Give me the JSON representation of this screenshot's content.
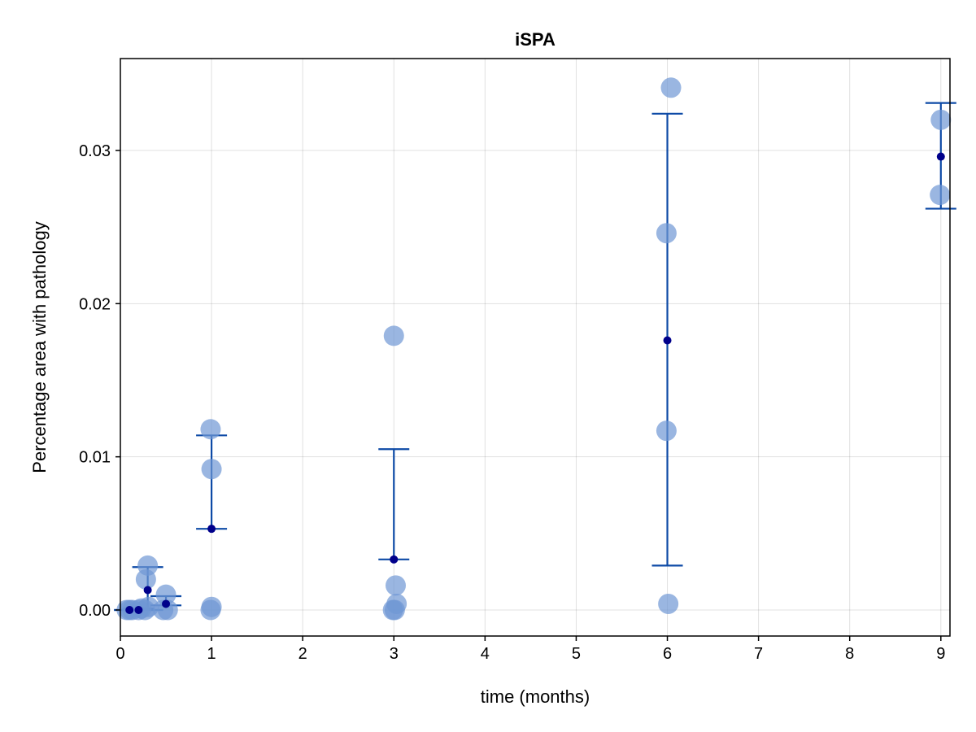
{
  "chart_data": {
    "type": "scatter",
    "title": "iSPA",
    "xlabel": "time (months)",
    "ylabel": "Percentage area with pathology",
    "xlim": [
      0,
      9.1
    ],
    "ylim": [
      -0.0017,
      0.036
    ],
    "xticks": [
      0,
      1,
      2,
      3,
      4,
      5,
      6,
      7,
      8,
      9
    ],
    "xtick_labels": [
      "0",
      "1",
      "2",
      "3",
      "4",
      "5",
      "6",
      "7",
      "8",
      "9"
    ],
    "yticks": [
      0.0,
      0.01,
      0.02,
      0.03
    ],
    "ytick_labels": [
      "0.00",
      "0.01",
      "0.02",
      "0.03"
    ],
    "grid": true,
    "colors": {
      "points": "#6f97d4",
      "errorbar": "#0d4aa6",
      "mean": "#00008b"
    },
    "points": [
      {
        "x": 0.07,
        "y": 0.0
      },
      {
        "x": 0.1,
        "y": 0.0
      },
      {
        "x": 0.13,
        "y": 0.0
      },
      {
        "x": 0.2,
        "y": 0.0
      },
      {
        "x": 0.23,
        "y": 0.0001
      },
      {
        "x": 0.27,
        "y": 0.0
      },
      {
        "x": 0.3,
        "y": 0.0029
      },
      {
        "x": 0.28,
        "y": 0.002
      },
      {
        "x": 0.31,
        "y": 0.0002
      },
      {
        "x": 0.47,
        "y": 0.0
      },
      {
        "x": 0.5,
        "y": 0.001
      },
      {
        "x": 0.52,
        "y": 0.0
      },
      {
        "x": 0.99,
        "y": 0.0118
      },
      {
        "x": 1.0,
        "y": 0.0092
      },
      {
        "x": 1.0,
        "y": 0.0002
      },
      {
        "x": 0.99,
        "y": 0.0
      },
      {
        "x": 3.0,
        "y": 0.0179
      },
      {
        "x": 3.02,
        "y": 0.0016
      },
      {
        "x": 3.03,
        "y": 0.0004
      },
      {
        "x": 2.99,
        "y": 0.0
      },
      {
        "x": 3.01,
        "y": 0.0
      },
      {
        "x": 6.04,
        "y": 0.0341
      },
      {
        "x": 5.99,
        "y": 0.0246
      },
      {
        "x": 5.99,
        "y": 0.0117
      },
      {
        "x": 6.01,
        "y": 0.0004
      },
      {
        "x": 9.0,
        "y": 0.032
      },
      {
        "x": 8.99,
        "y": 0.0271
      }
    ],
    "summary": [
      {
        "x": 0.1,
        "mean": 0.0,
        "low": 0.0,
        "high": 0.0
      },
      {
        "x": 0.2,
        "mean": 0.0,
        "low": 0.0,
        "high": 0.0001
      },
      {
        "x": 0.3,
        "mean": 0.0013,
        "low": 0.0,
        "high": 0.0028
      },
      {
        "x": 0.5,
        "mean": 0.0004,
        "low": 0.0003,
        "high": 0.0009
      },
      {
        "x": 1.0,
        "mean": 0.0053,
        "low": 0.0053,
        "high": 0.0114
      },
      {
        "x": 3.0,
        "mean": 0.0033,
        "low": 0.0033,
        "high": 0.0105
      },
      {
        "x": 6.0,
        "mean": 0.0176,
        "low": 0.0029,
        "high": 0.0324
      },
      {
        "x": 9.0,
        "mean": 0.0296,
        "low": 0.0262,
        "high": 0.0331
      }
    ]
  }
}
